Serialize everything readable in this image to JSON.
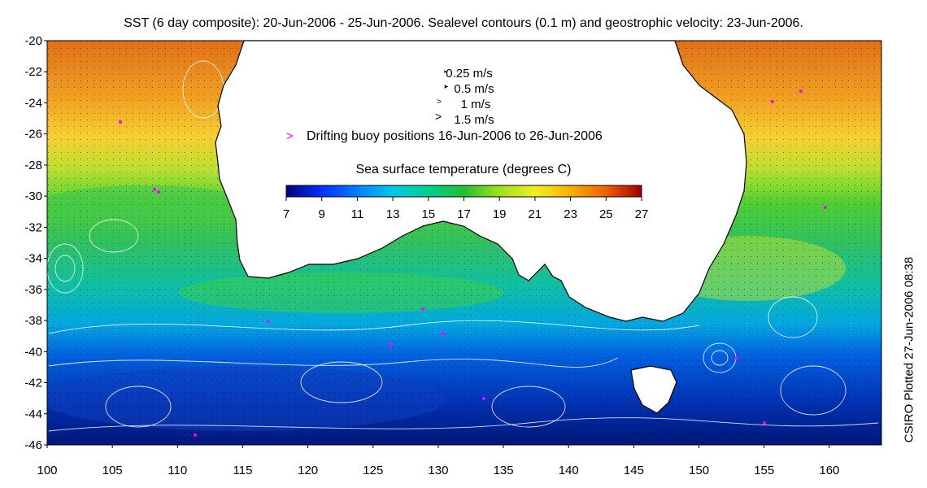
{
  "title": "SST (6 day composite): 20-Jun-2006 - 25-Jun-2006. Sealevel contours (0.1 m) and geostrophic velocity: 23-Jun-2006.",
  "credit": "CSIRO Plotted 27-Jun-2006 08:38",
  "legend": {
    "velocity_scale": [
      "0.25 m/s",
      "0.5 m/s",
      "1 m/s",
      "1.5 m/s"
    ],
    "buoy_label": "Drifting buoy positions 16-Jun-2006 to 26-Jun-2006",
    "colorbar_title": "Sea surface temperature (degrees C)",
    "colorbar_ticks": [
      "7",
      "9",
      "11",
      "13",
      "15",
      "17",
      "19",
      "21",
      "23",
      "25",
      "27"
    ]
  },
  "axes": {
    "x_ticks": [
      "100",
      "105",
      "110",
      "115",
      "120",
      "125",
      "130",
      "135",
      "140",
      "145",
      "150",
      "155",
      "160"
    ],
    "y_ticks": [
      "-20",
      "-22",
      "-24",
      "-26",
      "-28",
      "-30",
      "-32",
      "-34",
      "-36",
      "-38",
      "-40",
      "-42",
      "-44",
      "-46"
    ],
    "x_range": [
      100,
      164
    ],
    "y_range": [
      -46,
      -20
    ]
  },
  "colors": {
    "buoy": "#ff00ff",
    "contour": "#ffffff",
    "land": "#ffffff",
    "sst_scale": [
      "#000080",
      "#0030ff",
      "#00a0ff",
      "#00e0d0",
      "#10c040",
      "#40e020",
      "#e0f020",
      "#f8c000",
      "#f08000",
      "#d04000",
      "#a00000"
    ]
  }
}
